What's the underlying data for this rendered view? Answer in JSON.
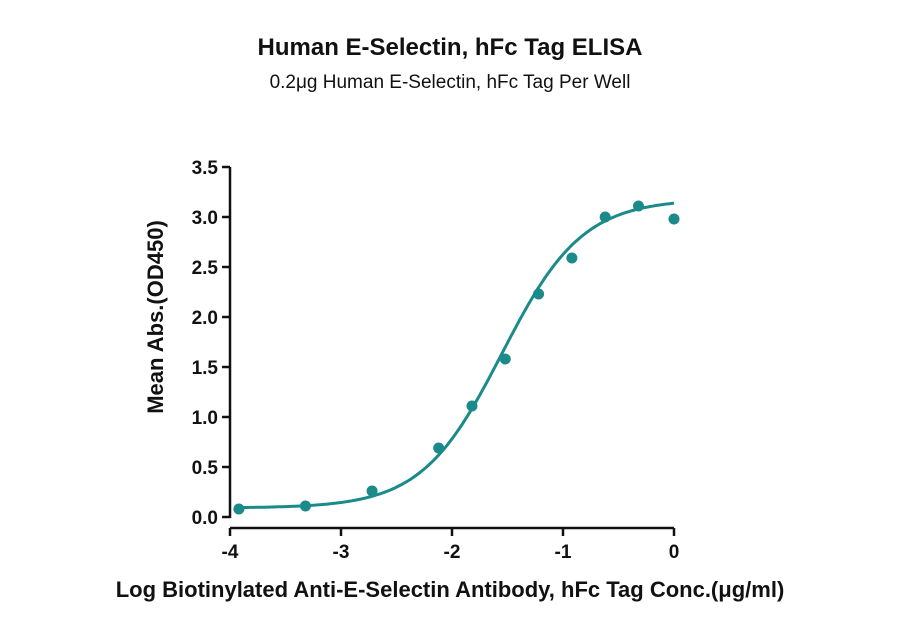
{
  "chart_data": {
    "type": "scatter",
    "title": "Human E-Selectin, hFc Tag ELISA",
    "subtitle": "0.2μg Human E-Selectin, hFc Tag Per Well",
    "xlabel": "Log Biotinylated Anti-E-Selectin Antibody, hFc Tag Conc.(μg/ml)",
    "ylabel": "Mean Abs.(OD450)",
    "xlim": [
      -4,
      0
    ],
    "ylim": [
      0,
      3.5
    ],
    "x_ticks": [
      "-4",
      "-3",
      "-2",
      "-1",
      "0"
    ],
    "y_ticks": [
      "0.0",
      "0.5",
      "1.0",
      "1.5",
      "2.0",
      "2.5",
      "3.0",
      "3.5"
    ],
    "grid": false,
    "series_color": "#1a8a8a",
    "points": {
      "x": [
        -3.92,
        -3.32,
        -2.72,
        -2.12,
        -1.82,
        -1.52,
        -1.22,
        -0.92,
        -0.62,
        -0.32,
        0.0
      ],
      "y": [
        0.08,
        0.11,
        0.26,
        0.69,
        1.11,
        1.58,
        2.23,
        2.59,
        3.0,
        3.11,
        2.98
      ]
    },
    "fit_curve": {
      "model": "4PL",
      "bottom": 0.09,
      "top": 3.18,
      "logEC50": -1.55,
      "hill": 1.2
    }
  }
}
